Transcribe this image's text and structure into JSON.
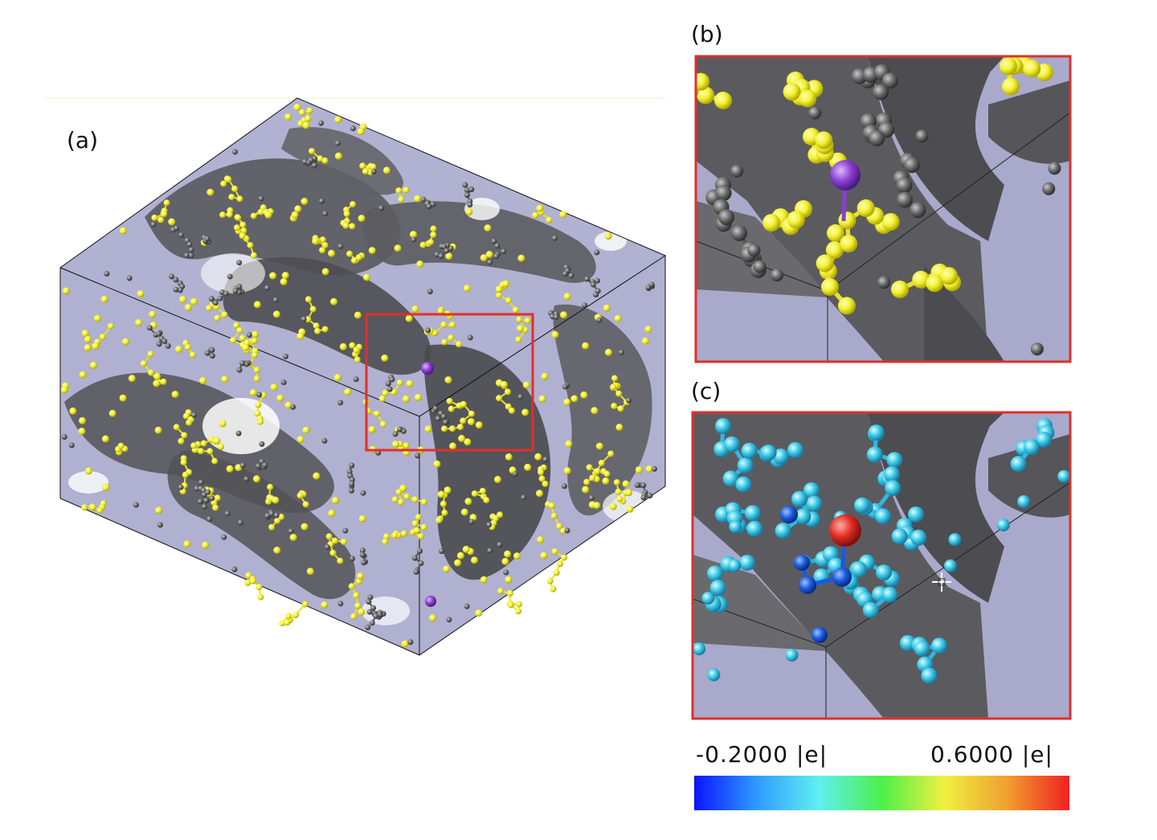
{
  "panels": {
    "a": "(a)",
    "b": "(b)",
    "c": "(c)"
  },
  "colorbar": {
    "min_label": "-0.2000 |e|",
    "max_label": "0.6000 |e|",
    "gradient": [
      "#0a14ff",
      "#2f9bff",
      "#5ff0f0",
      "#4cf04a",
      "#f0f040",
      "#f0a030",
      "#f02020"
    ]
  },
  "colors": {
    "membrane": "#a9a9cc",
    "surface_dark": "#5a5a5e",
    "sulfur": "#f2f035",
    "carbon": "#666666",
    "lithium": "#8a3fd0",
    "highlight_frame": "#e0302a",
    "charge_cyan": "#38c6e8",
    "charge_blue": "#1a5adf",
    "charge_red": "#e02a20"
  },
  "icons": {
    "cursor": "crosshair-cursor-icon"
  }
}
